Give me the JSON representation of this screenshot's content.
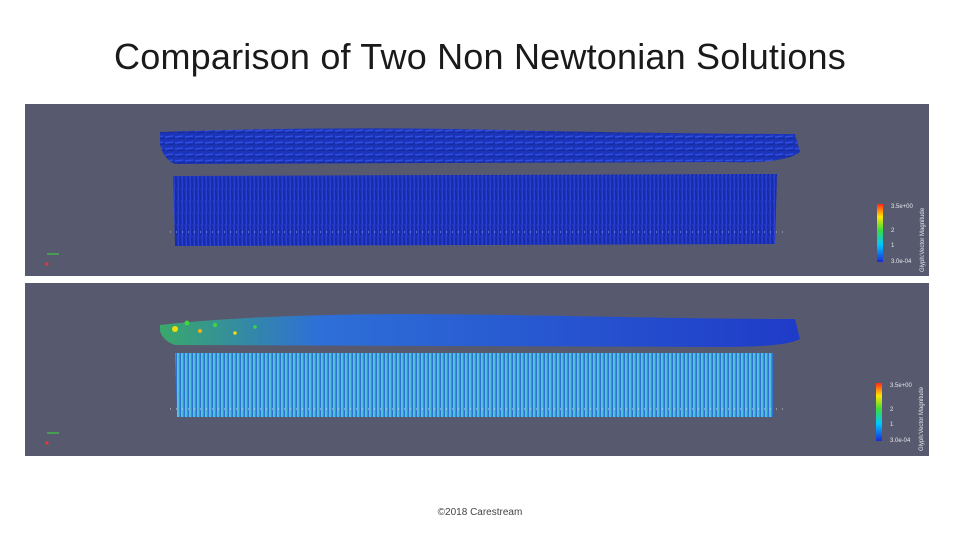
{
  "slide": {
    "title": "Comparison of Two Non Newtonian Solutions",
    "footer": "©2018 Carestream"
  },
  "panels": [
    {
      "id": "top",
      "legend": {
        "title": "Glyph:Vector Magnitude",
        "ticks": [
          "3.5e+00",
          "2",
          "1",
          "3.0e-04"
        ]
      },
      "colors": {
        "background": "#575a6e",
        "primary": "#1f3bd1"
      }
    },
    {
      "id": "bottom",
      "legend": {
        "title": "Glyph:Vector Magnitude",
        "ticks": [
          "3.5e+00",
          "2",
          "1",
          "3.0e-04"
        ]
      },
      "colors": {
        "background": "#575a6e",
        "primary": "#3fb8c4"
      }
    }
  ],
  "colormap": [
    "#1a2bd6",
    "#00c8ff",
    "#3ddc3d",
    "#ffe600",
    "#ff2a1a"
  ]
}
